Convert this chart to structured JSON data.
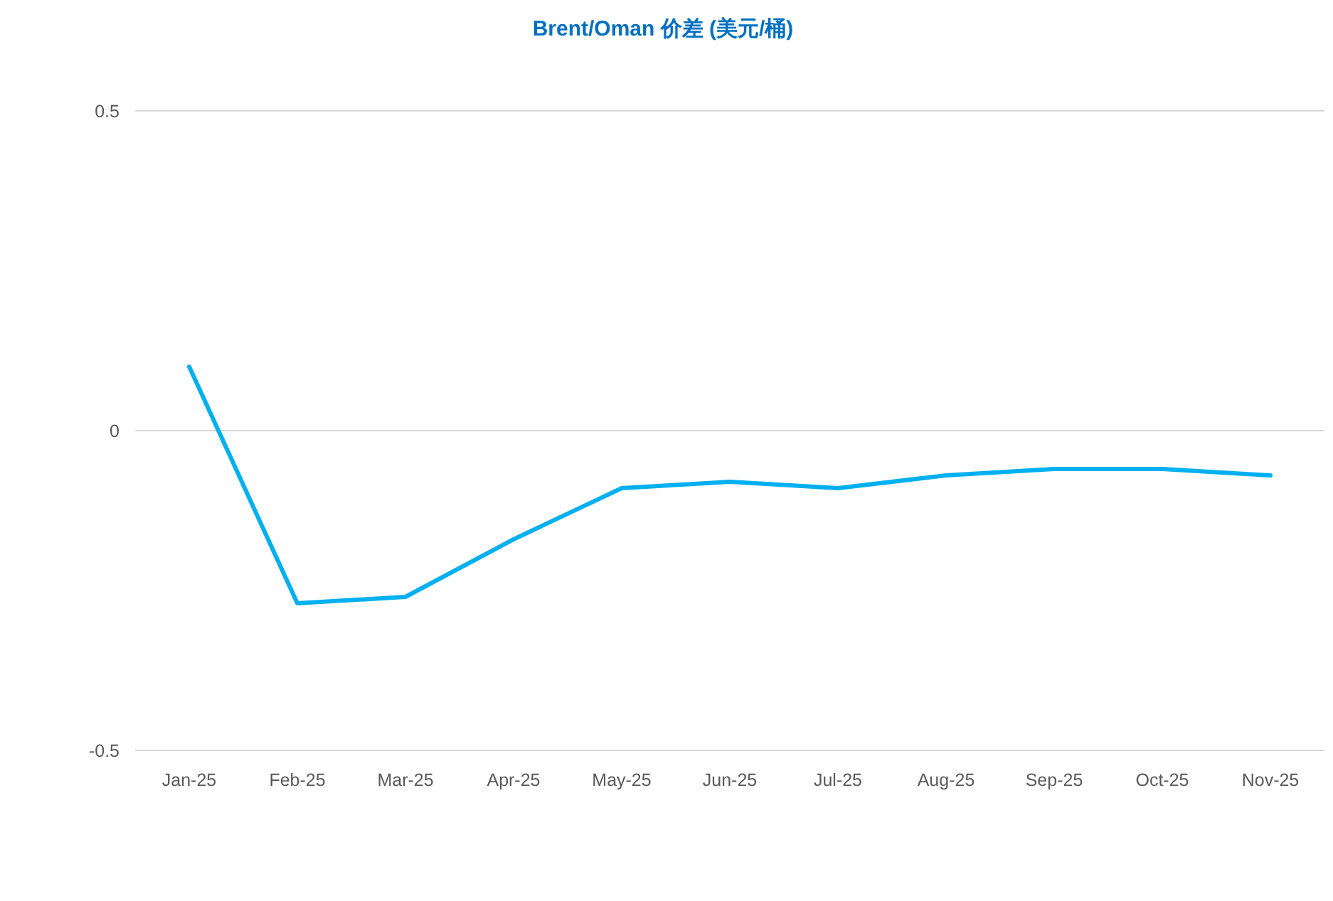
{
  "chart_data": {
    "type": "line",
    "title": "Brent/Oman 价差 (美元/桶)",
    "categories": [
      "Jan-25",
      "Feb-25",
      "Mar-25",
      "Apr-25",
      "May-25",
      "Jun-25",
      "Jul-25",
      "Aug-25",
      "Sep-25",
      "Oct-25",
      "Nov-25"
    ],
    "values": [
      0.1,
      -0.27,
      -0.26,
      -0.17,
      -0.09,
      -0.08,
      -0.09,
      -0.07,
      -0.06,
      -0.06,
      -0.07
    ],
    "color": "#00b0f0",
    "ylim": [
      -0.5,
      0.5
    ],
    "yticks": [
      -0.5,
      0,
      0.5
    ],
    "grid": "y"
  }
}
